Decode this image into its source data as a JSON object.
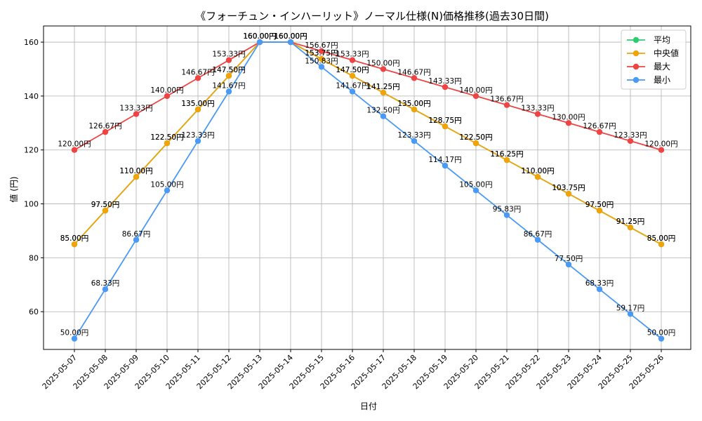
{
  "chart_data": {
    "type": "line",
    "title": "《フォーチュン・インハーリット》ノーマル仕様(N)価格推移(過去30日間)",
    "xlabel": "日付",
    "ylabel": "値 (円)",
    "ylim": [
      46,
      166
    ],
    "yticks": [
      60,
      80,
      100,
      120,
      140,
      160
    ],
    "grid": true,
    "legend_position": "top-right",
    "value_suffix": "円",
    "categories": [
      "2025-05-07",
      "2025-05-08",
      "2025-05-09",
      "2025-05-10",
      "2025-05-11",
      "2025-05-12",
      "2025-05-13",
      "2025-05-14",
      "2025-05-15",
      "2025-05-16",
      "2025-05-17",
      "2025-05-18",
      "2025-05-19",
      "2025-05-20",
      "2025-05-21",
      "2025-05-22",
      "2025-05-23",
      "2025-05-24",
      "2025-05-25",
      "2025-05-26"
    ],
    "series": [
      {
        "name": "平均",
        "color": "#2ecc71",
        "values": [
          85.0,
          97.5,
          110.0,
          122.5,
          135.0,
          147.5,
          160.0,
          160.0,
          153.75,
          147.5,
          141.25,
          135.0,
          128.75,
          122.5,
          116.25,
          110.0,
          103.75,
          97.5,
          91.25,
          85.0
        ]
      },
      {
        "name": "中央値",
        "color": "#f0a30a",
        "values": [
          85.0,
          97.5,
          110.0,
          122.5,
          135.0,
          147.5,
          160.0,
          160.0,
          153.75,
          147.5,
          141.25,
          135.0,
          128.75,
          122.5,
          116.25,
          110.0,
          103.75,
          97.5,
          91.25,
          85.0
        ]
      },
      {
        "name": "最大",
        "color": "#ef4444",
        "values": [
          120.0,
          126.67,
          133.33,
          140.0,
          146.67,
          153.33,
          160.0,
          160.0,
          156.67,
          153.33,
          150.0,
          146.67,
          143.33,
          140.0,
          136.67,
          133.33,
          130.0,
          126.67,
          123.33,
          120.0
        ]
      },
      {
        "name": "最小",
        "color": "#4a9af5",
        "values": [
          50.0,
          68.33,
          86.67,
          105.0,
          123.33,
          141.67,
          160.0,
          160.0,
          150.83,
          141.67,
          132.5,
          123.33,
          114.17,
          105.0,
          95.83,
          86.67,
          77.5,
          68.33,
          59.17,
          50.0
        ]
      }
    ]
  }
}
